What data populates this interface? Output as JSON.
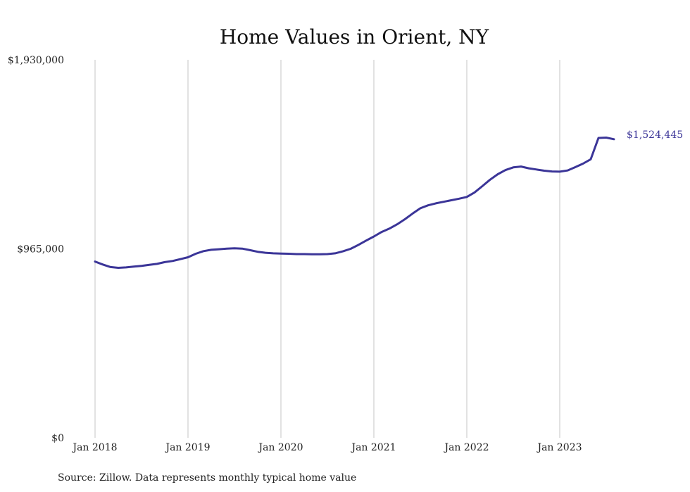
{
  "chart_data": {
    "type": "line",
    "title": "Home Values in Orient, NY",
    "xlabel": "",
    "ylabel": "",
    "source": "Source: Zillow. Data represents monthly typical home value",
    "ylim": [
      0,
      1930000
    ],
    "y_ticks": [
      {
        "value": 0,
        "label": "$0"
      },
      {
        "value": 965000,
        "label": "$965,000"
      },
      {
        "value": 1930000,
        "label": "$1,930,000"
      }
    ],
    "x_ticks": [
      {
        "value": "2018-01",
        "label": "Jan 2018"
      },
      {
        "value": "2019-01",
        "label": "Jan 2019"
      },
      {
        "value": "2020-01",
        "label": "Jan 2020"
      },
      {
        "value": "2021-01",
        "label": "Jan 2021"
      },
      {
        "value": "2022-01",
        "label": "Jan 2022"
      },
      {
        "value": "2023-01",
        "label": "Jan 2023"
      }
    ],
    "vertical_grid": true,
    "line_color": "#3b3598",
    "end_label": "$1,524,445",
    "series": [
      {
        "x": [
          "2018-01",
          "2018-02",
          "2018-03",
          "2018-04",
          "2018-05",
          "2018-06",
          "2018-07",
          "2018-08",
          "2018-09",
          "2018-10",
          "2018-11",
          "2018-12",
          "2019-01",
          "2019-02",
          "2019-03",
          "2019-04",
          "2019-05",
          "2019-06",
          "2019-07",
          "2019-08",
          "2019-09",
          "2019-10",
          "2019-11",
          "2019-12",
          "2020-01",
          "2020-02",
          "2020-03",
          "2020-04",
          "2020-05",
          "2020-06",
          "2020-07",
          "2020-08",
          "2020-09",
          "2020-10",
          "2020-11",
          "2020-12",
          "2021-01",
          "2021-02",
          "2021-03",
          "2021-04",
          "2021-05",
          "2021-06",
          "2021-07",
          "2021-08",
          "2021-09",
          "2021-10",
          "2021-11",
          "2021-12",
          "2022-01",
          "2022-02",
          "2022-03",
          "2022-04",
          "2022-05",
          "2022-06",
          "2022-07",
          "2022-08",
          "2022-09",
          "2022-10",
          "2022-11",
          "2022-12",
          "2023-01",
          "2023-02",
          "2023-03",
          "2023-04",
          "2023-05",
          "2023-06",
          "2023-07",
          "2023-08"
        ],
        "values": [
          900000,
          885000,
          872000,
          868000,
          870000,
          874000,
          878000,
          883000,
          888000,
          897000,
          903000,
          912000,
          922000,
          940000,
          953000,
          960000,
          963000,
          966000,
          968000,
          966000,
          958000,
          950000,
          945000,
          942000,
          941000,
          940000,
          938000,
          938000,
          937000,
          937000,
          938000,
          942000,
          952000,
          965000,
          985000,
          1007000,
          1028000,
          1051000,
          1068000,
          1090000,
          1116000,
          1145000,
          1172000,
          1187000,
          1197000,
          1205000,
          1213000,
          1221000,
          1230000,
          1253000,
          1285000,
          1318000,
          1346000,
          1367000,
          1381000,
          1385000,
          1376000,
          1370000,
          1364000,
          1360000,
          1359000,
          1365000,
          1382000,
          1400000,
          1422000,
          1531000,
          1533000,
          1524445
        ]
      }
    ]
  }
}
